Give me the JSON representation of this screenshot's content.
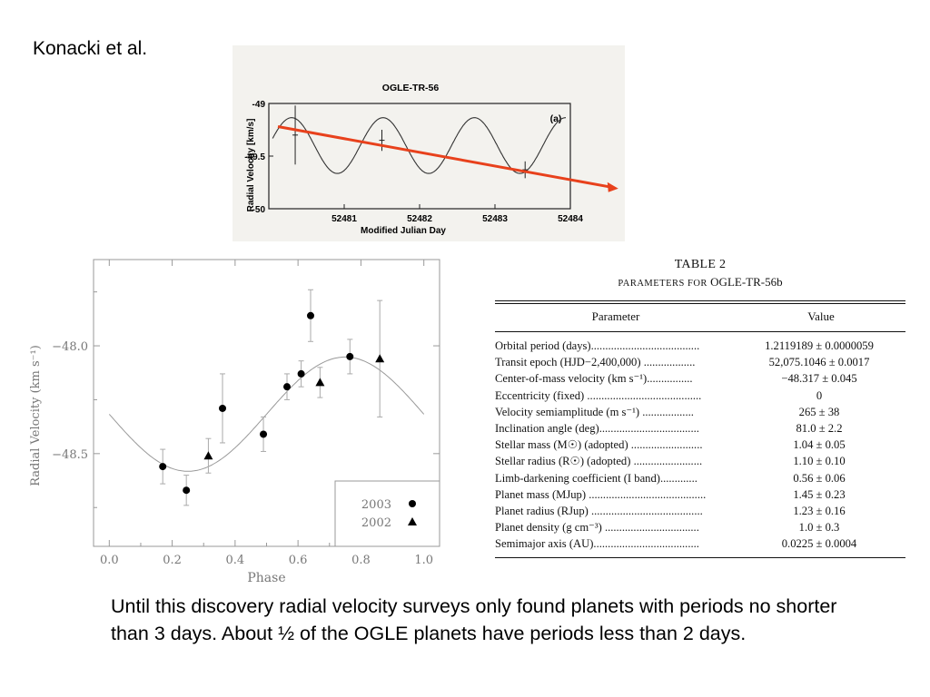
{
  "slide": {
    "title": "Konacki et al.",
    "body_text": "Until this discovery radial velocity surveys only found planets with periods no shorter than 3 days. About ½ of the OGLE planets have periods less than 2 days."
  },
  "chart_data": [
    {
      "type": "line",
      "title": "OGLE-TR-56",
      "panel_label": "(a)",
      "xlabel": "Modified Julian Day",
      "ylabel": "Radial Velocity [km/s]",
      "xlim": [
        52480,
        52484
      ],
      "ylim": [
        -50,
        -49
      ],
      "x_ticks": [
        "52481",
        "52482",
        "52483",
        "52484"
      ],
      "y_ticks": [
        "-49",
        "-49.5",
        "-50"
      ],
      "model": {
        "period_days": 1.2119189,
        "gamma": -49.4,
        "amplitude": 0.265
      },
      "error_points": [
        {
          "x": 52480.35,
          "y": -49.3,
          "err": 0.28
        },
        {
          "x": 52481.5,
          "y": -49.35,
          "err": 0.1
        },
        {
          "x": 52483.4,
          "y": -49.63,
          "err": 0.08
        }
      ],
      "trend_arrow": {
        "x": [
          52480,
          52484.6
        ],
        "y": [
          -49.22,
          -49.8
        ],
        "color": "#e8411c"
      },
      "grid": false
    },
    {
      "type": "scatter",
      "xlabel": "Phase",
      "ylabel": "Radial Velocity (km s⁻¹)",
      "xlim": [
        -0.05,
        1.05
      ],
      "ylim": [
        -48.93,
        -47.6
      ],
      "x_ticks": [
        "0.0",
        "0.2",
        "0.4",
        "0.6",
        "0.8",
        "1.0"
      ],
      "y_ticks": [
        "−48.0",
        "−48.5"
      ],
      "model": {
        "gamma": -48.317,
        "amplitude": 0.265
      },
      "legend_position": "bottom-right",
      "grid": false,
      "series": [
        {
          "name": "2003",
          "marker": "circle",
          "x": [
            0.17,
            0.245,
            0.36,
            0.49,
            0.565,
            0.61,
            0.64,
            0.765
          ],
          "y": [
            -48.56,
            -48.67,
            -48.29,
            -48.41,
            -48.19,
            -48.13,
            -47.86,
            -48.05
          ],
          "err": [
            0.08,
            0.07,
            0.16,
            0.08,
            0.06,
            0.06,
            0.12,
            0.08
          ]
        },
        {
          "name": "2002",
          "marker": "triangle",
          "x": [
            0.315,
            0.67,
            0.86
          ],
          "y": [
            -48.51,
            -48.17,
            -48.06
          ],
          "err": [
            0.08,
            0.07,
            0.27
          ]
        }
      ]
    }
  ],
  "table": {
    "caption": "TABLE 2",
    "subcaption_prefix": "Parameters for",
    "subcaption_object": "OGLE-TR-56b",
    "col_parameter": "Parameter",
    "col_value": "Value",
    "rows": [
      {
        "parameter": "Orbital period (days)......................................",
        "value": "1.2119189 ± 0.0000059"
      },
      {
        "parameter": "Transit epoch (HJD−2,400,000) ..................",
        "value": "52,075.1046 ± 0.0017"
      },
      {
        "parameter": "Center-of-mass velocity (km s⁻¹)................",
        "value": "−48.317 ± 0.045"
      },
      {
        "parameter": "Eccentricity (fixed) ........................................",
        "value": "0"
      },
      {
        "parameter": "Velocity semiamplitude (m s⁻¹) ..................",
        "value": "265 ± 38"
      },
      {
        "parameter": "Inclination angle (deg)...................................",
        "value": "81.0 ± 2.2"
      },
      {
        "parameter": "Stellar mass (M☉) (adopted) .........................",
        "value": "1.04 ± 0.05"
      },
      {
        "parameter": "Stellar radius (R☉) (adopted) ........................",
        "value": "1.10 ± 0.10"
      },
      {
        "parameter": "Limb-darkening coefficient (I band).............",
        "value": "0.56 ± 0.06"
      },
      {
        "parameter": "Planet mass (MJup) .........................................",
        "value": "1.45 ± 0.23"
      },
      {
        "parameter": "Planet radius (RJup) .......................................",
        "value": "1.23 ± 0.16"
      },
      {
        "parameter": "Planet density (g cm⁻³) .................................",
        "value": "1.0 ± 0.3"
      },
      {
        "parameter": "Semimajor axis (AU).....................................",
        "value": "0.0225 ± 0.0004"
      }
    ]
  }
}
